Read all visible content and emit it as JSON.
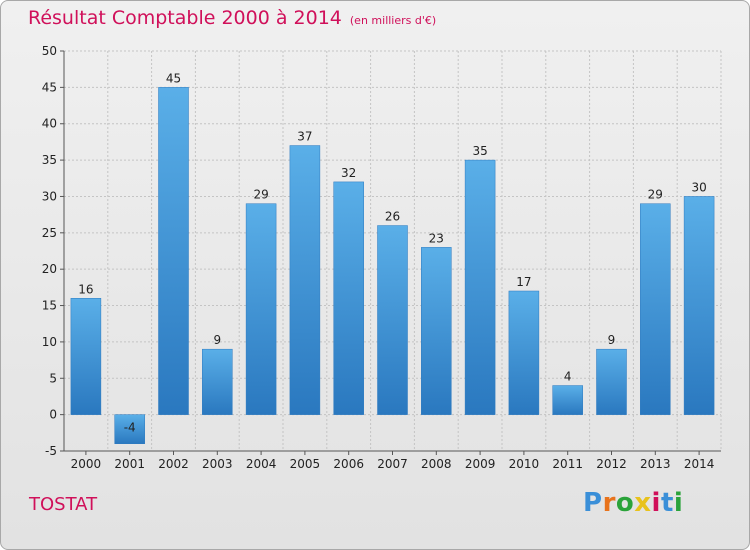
{
  "header": {
    "title": "Résultat Comptable 2000 à 2014",
    "subtitle": "(en milliers d'€)"
  },
  "footer": {
    "town": "TOSTAT",
    "logo_text": "Proxiti"
  },
  "colors": {
    "title": "#d0105a",
    "bar_top": "#5aafe8",
    "bar_bottom": "#2a78bf",
    "logo": [
      "#3a8fd8",
      "#e8731c",
      "#2aa33a",
      "#e8c21c",
      "#d0105a",
      "#3a8fd8",
      "#2aa33a"
    ]
  },
  "chart_data": {
    "type": "bar",
    "categories": [
      "2000",
      "2001",
      "2002",
      "2003",
      "2004",
      "2005",
      "2006",
      "2007",
      "2008",
      "2009",
      "2010",
      "2011",
      "2012",
      "2013",
      "2014"
    ],
    "values": [
      16,
      -4,
      45,
      9,
      29,
      37,
      32,
      26,
      23,
      35,
      17,
      4,
      9,
      29,
      30
    ],
    "data_labels": [
      "16",
      "-4",
      "45",
      "9",
      "29",
      "37",
      "32",
      "26",
      "23",
      "35",
      "17",
      "4",
      "9",
      "29",
      "30"
    ],
    "title": "Résultat Comptable 2000 à 2014",
    "xlabel": "",
    "ylabel": "",
    "ylim": [
      -5,
      50
    ],
    "yticks": [
      "-5",
      "0",
      "5",
      "10",
      "15",
      "20",
      "25",
      "30",
      "35",
      "40",
      "45",
      "50"
    ],
    "grid": true,
    "legend": "none"
  }
}
